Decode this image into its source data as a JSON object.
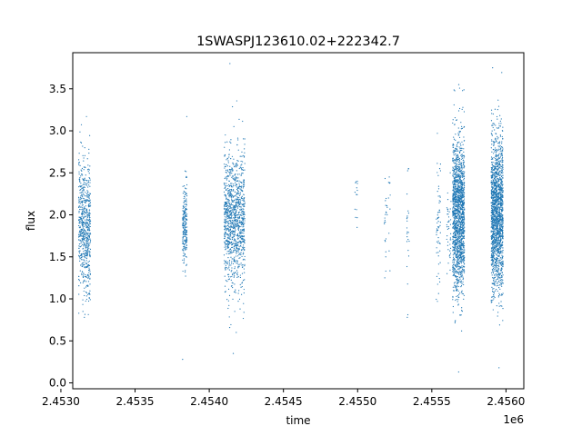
{
  "chart_data": {
    "type": "scatter",
    "title": "1SWASPJ123610.02+222342.7",
    "xlabel": "time",
    "ylabel": "flux",
    "x_offset_label": "1e6",
    "xlim": [
      2.45308,
      2.45612
    ],
    "ylim": [
      -0.07,
      3.93
    ],
    "x_ticks": [
      2.453,
      2.4535,
      2.454,
      2.4545,
      2.455,
      2.4555,
      2.456
    ],
    "x_tick_labels": [
      "2.4530",
      "2.4535",
      "2.4540",
      "2.4545",
      "2.4550",
      "2.4555",
      "2.4560"
    ],
    "y_ticks": [
      0.0,
      0.5,
      1.0,
      1.5,
      2.0,
      2.5,
      3.0,
      3.5
    ],
    "y_tick_labels": [
      "0.0",
      "0.5",
      "1.0",
      "1.5",
      "2.0",
      "2.5",
      "3.0",
      "3.5"
    ],
    "grid": false,
    "legend": "none",
    "color": "#1f77b4",
    "clusters": [
      {
        "x_start": 2.45312,
        "x_end": 2.4532,
        "y_center": 1.85,
        "y_spread": 0.38,
        "y_min": 0.78,
        "y_max": 3.17,
        "density": 650
      },
      {
        "x_start": 2.45382,
        "x_end": 2.45385,
        "y_center": 1.85,
        "y_spread": 0.25,
        "y_min": 0.28,
        "y_max": 3.17,
        "density": 220
      },
      {
        "x_start": 2.4541,
        "x_end": 2.45424,
        "y_center": 1.95,
        "y_spread": 0.4,
        "y_min": 0.35,
        "y_max": 3.8,
        "density": 1100
      },
      {
        "x_start": 2.45498,
        "x_end": 2.455,
        "y_center": 2.05,
        "y_spread": 0.25,
        "y_min": 1.85,
        "y_max": 2.4,
        "density": 12
      },
      {
        "x_start": 2.45518,
        "x_end": 2.45522,
        "y_center": 1.85,
        "y_spread": 0.35,
        "y_min": 1.25,
        "y_max": 2.45,
        "density": 30
      },
      {
        "x_start": 2.45533,
        "x_end": 2.45535,
        "y_center": 1.8,
        "y_spread": 0.35,
        "y_min": 0.78,
        "y_max": 2.55,
        "density": 22
      },
      {
        "x_start": 2.45553,
        "x_end": 2.45556,
        "y_center": 1.9,
        "y_spread": 0.35,
        "y_min": 0.97,
        "y_max": 2.97,
        "density": 60
      },
      {
        "x_start": 2.4556,
        "x_end": 2.45563,
        "y_center": 1.85,
        "y_spread": 0.3,
        "y_min": 1.3,
        "y_max": 2.5,
        "density": 40
      },
      {
        "x_start": 2.45564,
        "x_end": 2.45572,
        "y_center": 2.0,
        "y_spread": 0.45,
        "y_min": 0.13,
        "y_max": 3.55,
        "density": 1600
      },
      {
        "x_start": 2.4559,
        "x_end": 2.45598,
        "y_center": 2.0,
        "y_spread": 0.45,
        "y_min": 0.18,
        "y_max": 3.75,
        "density": 1700
      }
    ]
  }
}
